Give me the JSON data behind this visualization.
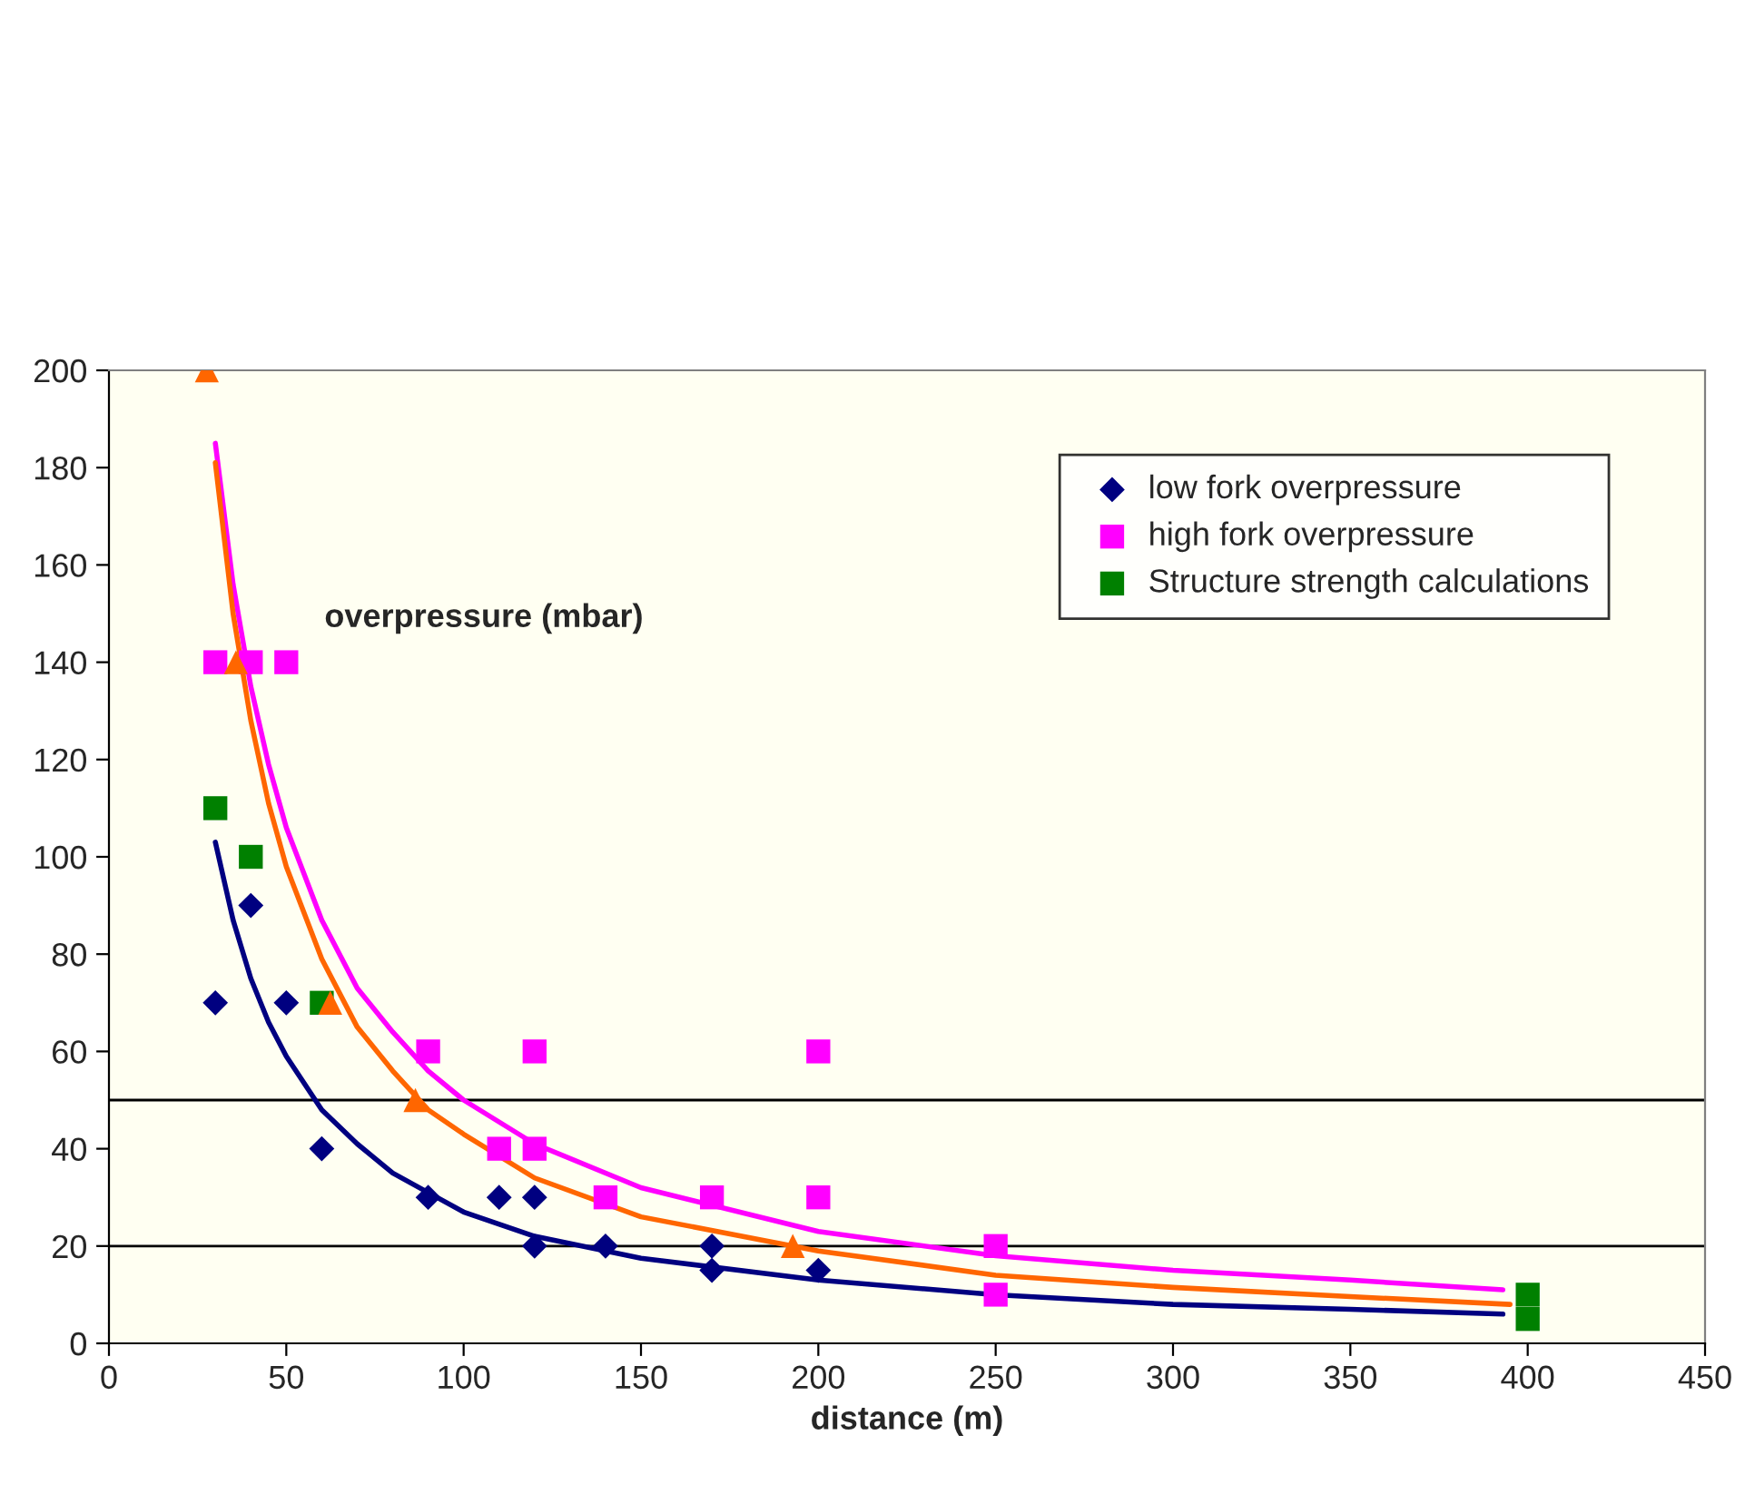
{
  "chart_data": {
    "type": "scatter",
    "xlabel": "distance (m)",
    "ylabel": "overpressure (mbar)",
    "xlim": [
      0,
      450
    ],
    "xticks": [
      0,
      50,
      100,
      150,
      200,
      250,
      300,
      350,
      400,
      450
    ],
    "ylim": [
      0,
      200
    ],
    "yticks": [
      0,
      20,
      40,
      60,
      80,
      100,
      120,
      140,
      160,
      180,
      200
    ],
    "grid": false,
    "legend": "top right",
    "series": [
      {
        "name": "low fork overpressure",
        "color": "#000080",
        "marker": "diamond",
        "x": [
          30,
          40,
          50,
          60,
          90,
          110,
          120,
          120,
          140,
          170,
          170,
          200
        ],
        "values": [
          70,
          90,
          70,
          40,
          30,
          30,
          30,
          20,
          20,
          20,
          15,
          15
        ]
      },
      {
        "name": "high fork overpressure",
        "color": "#ff00ff",
        "marker": "square",
        "x": [
          30,
          40,
          50,
          90,
          110,
          120,
          120,
          140,
          170,
          200,
          200,
          250,
          250
        ],
        "values": [
          140,
          140,
          140,
          60,
          40,
          60,
          40,
          30,
          30,
          60,
          30,
          20,
          10
        ]
      },
      {
        "name": "Structure strength calculations",
        "color": "#008000",
        "marker": "square",
        "x": [
          30,
          40,
          60,
          400,
          400
        ],
        "values": [
          110,
          100,
          70,
          10,
          5
        ]
      },
      {
        "color": "#ff6600",
        "marker": "triangle",
        "x": [
          27.6,
          35.8,
          62.4,
          86.4,
          192.8
        ],
        "values": [
          200,
          140,
          70,
          50,
          20
        ]
      },
      {
        "type": "line",
        "color": "#000080",
        "x": [
          30,
          35,
          40,
          45,
          50,
          60,
          70,
          80,
          90,
          100,
          120,
          150,
          200,
          250,
          300,
          350,
          393
        ],
        "values": [
          103,
          87,
          75,
          66,
          59,
          48,
          41,
          35,
          31,
          27,
          22,
          17.5,
          13,
          10,
          8,
          7,
          6
        ]
      },
      {
        "type": "line",
        "color": "#ff00ff",
        "x": [
          30,
          35,
          40,
          45,
          50,
          60,
          70,
          80,
          90,
          100,
          120,
          150,
          200,
          250,
          300,
          350,
          393
        ],
        "values": [
          185,
          156,
          135,
          119,
          106,
          87,
          73,
          64,
          56,
          50,
          41,
          32,
          23,
          18,
          15,
          13,
          11
        ]
      },
      {
        "type": "line",
        "color": "#ff6600",
        "x": [
          30,
          35,
          40,
          45,
          50,
          60,
          70,
          80,
          90,
          100,
          120,
          150,
          200,
          250,
          300,
          350,
          395
        ],
        "values": [
          181,
          150,
          128,
          111,
          98,
          79,
          65,
          56,
          48,
          43,
          34,
          26,
          19,
          14,
          11.5,
          9.6,
          8
        ]
      }
    ],
    "ref_lines": [
      {
        "axis": "y",
        "value": 50,
        "color": "#000000"
      },
      {
        "axis": "y",
        "value": 20,
        "color": "#000000"
      }
    ]
  }
}
